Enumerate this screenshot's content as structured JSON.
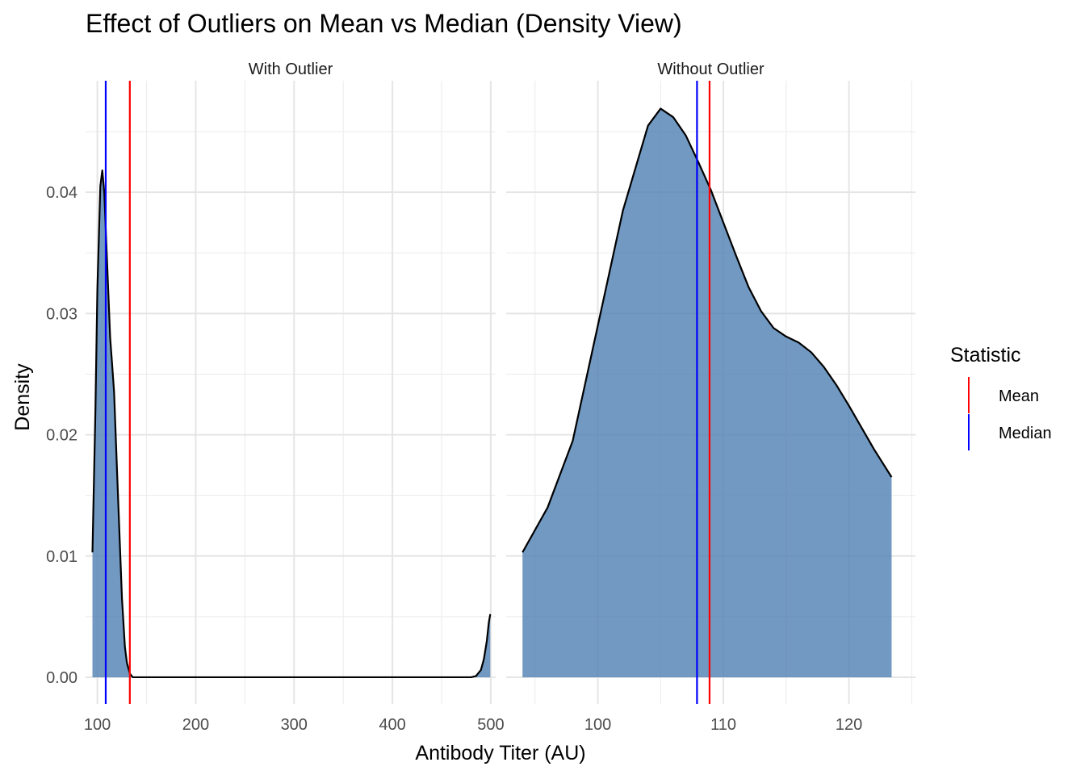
{
  "chart_data": {
    "type": "area",
    "title": "Effect of Outliers on Mean vs Median (Density View)",
    "xlabel": "Antibody Titer (AU)",
    "ylabel": "Density",
    "grid": true,
    "legend": {
      "title": "Statistic",
      "placement": "right",
      "entries": [
        {
          "label": "Mean",
          "color": "#ff0000"
        },
        {
          "label": "Median",
          "color": "#0000ff"
        }
      ]
    },
    "fill_color": "#4f7fb3",
    "panels": [
      {
        "strip": "With Outlier",
        "xlim": [
          88,
          505
        ],
        "ylim": [
          -0.0022,
          0.0492
        ],
        "x_ticks": [
          100,
          200,
          300,
          400,
          500
        ],
        "x_tick_labels": [
          "100",
          "200",
          "300",
          "400",
          "500"
        ],
        "y_ticks": [
          0,
          0.01,
          0.02,
          0.03,
          0.04
        ],
        "y_tick_labels": [
          "0.00",
          "0.01",
          "0.02",
          "0.03",
          "0.04"
        ],
        "mean": 133,
        "median": 108.5,
        "density": {
          "x": [
            95,
            98,
            100,
            103,
            105,
            107,
            110,
            113,
            115,
            117,
            120,
            125,
            128,
            130,
            133,
            136,
            140,
            200,
            300,
            400,
            480,
            485,
            490,
            493,
            496,
            498,
            499.5
          ],
          "y": [
            0.0103,
            0.022,
            0.032,
            0.0405,
            0.0418,
            0.04,
            0.034,
            0.028,
            0.0258,
            0.0235,
            0.017,
            0.0065,
            0.0025,
            0.0012,
            0.0003,
            0.0,
            0.0,
            0.0,
            0.0,
            0.0,
            0.0,
            0.0001,
            0.0006,
            0.0015,
            0.003,
            0.0045,
            0.0052
          ]
        }
      },
      {
        "strip": "Without Outlier",
        "xlim": [
          92.7,
          125.3
        ],
        "ylim": [
          -0.0022,
          0.0492
        ],
        "x_ticks": [
          100,
          110,
          120
        ],
        "x_tick_labels": [
          "100",
          "110",
          "120"
        ],
        "y_ticks": [
          0,
          0.01,
          0.02,
          0.03,
          0.04
        ],
        "y_tick_labels": [
          "",
          "",
          "",
          "",
          ""
        ],
        "mean": 108.9,
        "median": 107.9,
        "density": {
          "x": [
            94,
            96,
            98,
            100,
            102,
            104,
            105,
            106,
            107,
            108,
            109,
            110,
            111,
            112,
            113,
            114,
            115,
            116,
            117,
            118,
            119,
            120,
            121,
            122,
            123.4
          ],
          "y": [
            0.0103,
            0.014,
            0.0195,
            0.029,
            0.0385,
            0.0455,
            0.0469,
            0.0462,
            0.0447,
            0.0425,
            0.0402,
            0.0375,
            0.0348,
            0.0322,
            0.0302,
            0.0288,
            0.0281,
            0.0276,
            0.0268,
            0.0256,
            0.0241,
            0.0224,
            0.0206,
            0.0188,
            0.0165
          ]
        }
      }
    ]
  }
}
